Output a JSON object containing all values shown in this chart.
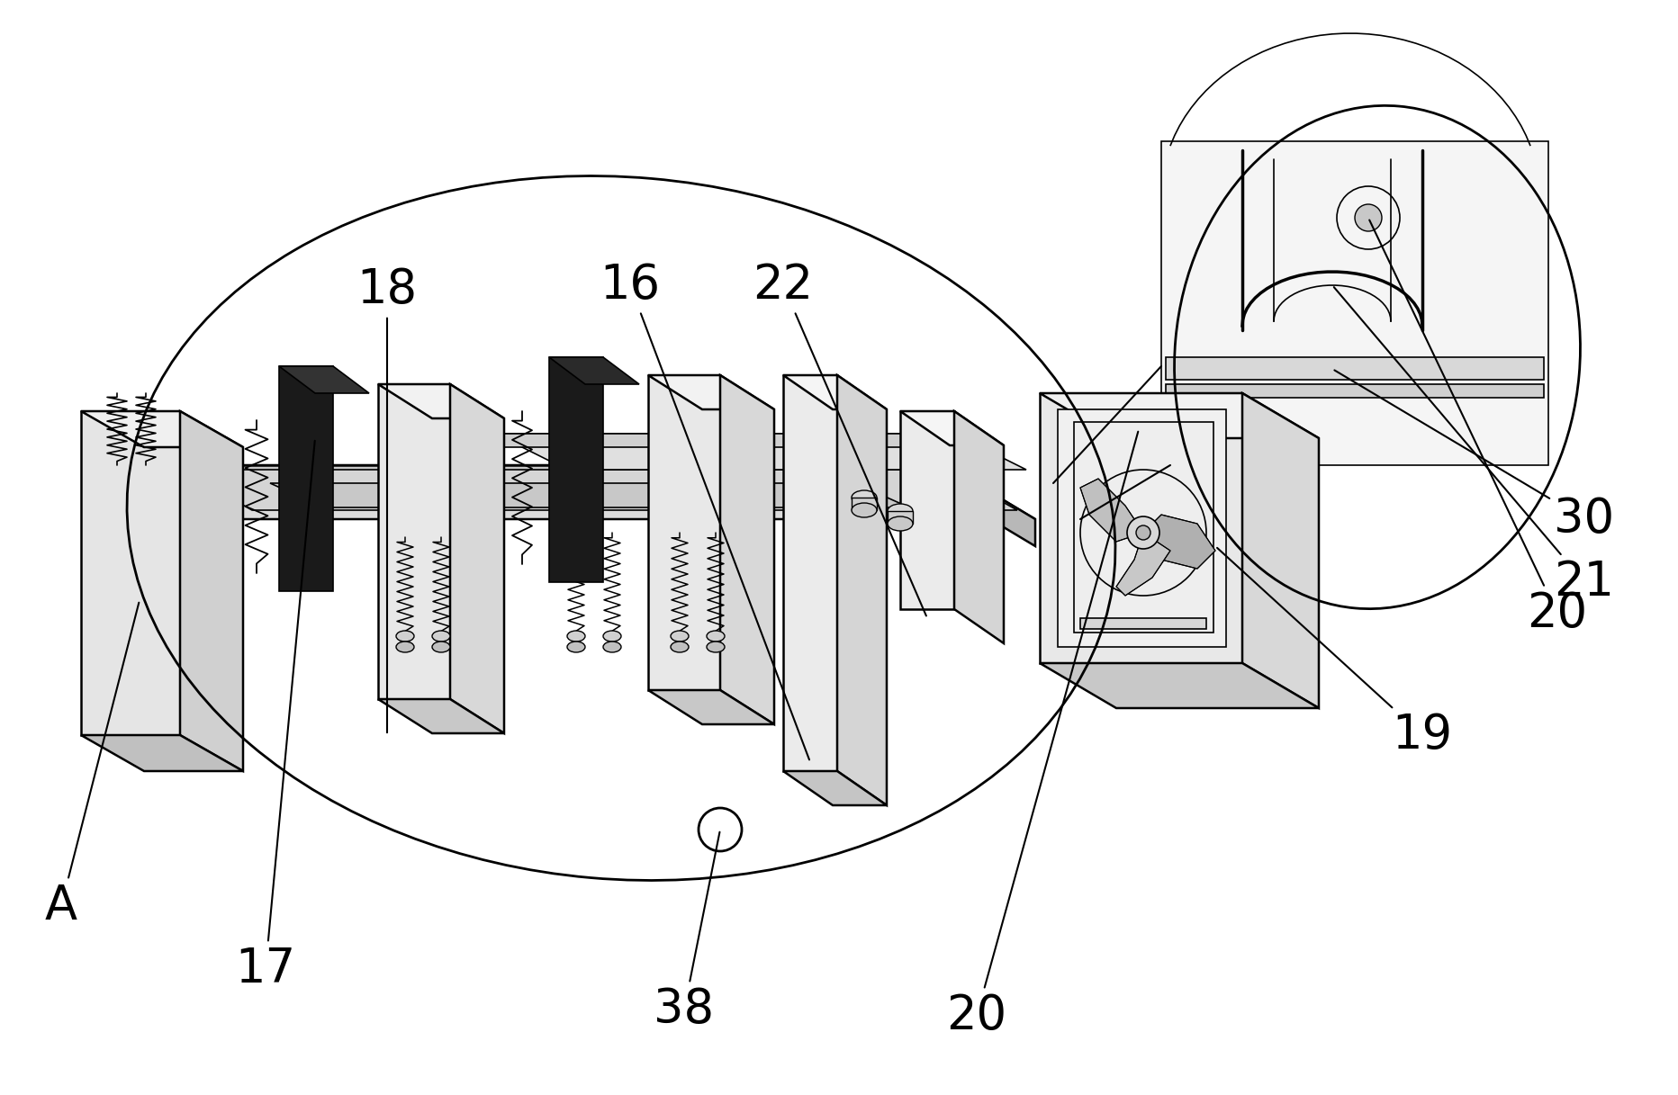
{
  "background_color": "#ffffff",
  "figure_width": 18.65,
  "figure_height": 12.17,
  "dpi": 100,
  "line_color": "#000000",
  "lw_main": 1.8,
  "lw_thin": 1.2,
  "lw_thick": 2.5
}
